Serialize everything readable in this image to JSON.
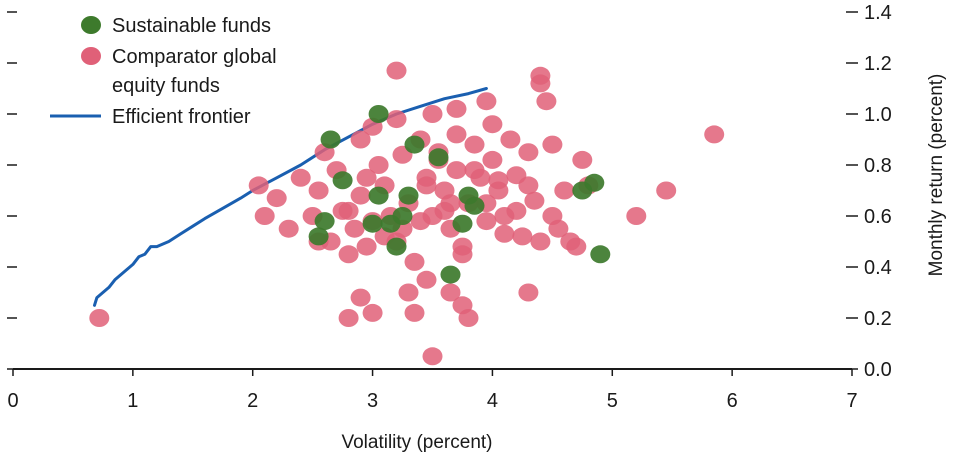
{
  "chart_data": {
    "type": "scatter",
    "title": "",
    "xlabel": "Volatility (percent)",
    "ylabel": "Monthly return (percent)",
    "xlim": [
      0,
      7
    ],
    "ylim": [
      0.0,
      1.4
    ],
    "x_ticks": [
      "0",
      "1",
      "2",
      "3",
      "4",
      "5",
      "6",
      "7"
    ],
    "y_ticks": [
      "0.0",
      "0.2",
      "0.4",
      "0.6",
      "0.8",
      "1.0",
      "1.2",
      "1.4"
    ],
    "y_axis_position": "right",
    "grid": false,
    "legend_position": "top-left",
    "legend": [
      {
        "label": "Sustainable funds",
        "marker": "dot",
        "color": "#3d7a2c"
      },
      {
        "label_lines": [
          "Comparator global",
          "equity funds"
        ],
        "marker": "dot",
        "color": "#e06078"
      },
      {
        "label": "Efficient frontier",
        "marker": "line",
        "color": "#1a5fb0"
      }
    ],
    "series": [
      {
        "name": "Comparator global equity funds",
        "kind": "scatter",
        "color": "#e06078",
        "points": [
          [
            0.72,
            0.2
          ],
          [
            2.05,
            0.72
          ],
          [
            2.1,
            0.6
          ],
          [
            2.2,
            0.67
          ],
          [
            2.3,
            0.55
          ],
          [
            2.4,
            0.75
          ],
          [
            2.5,
            0.6
          ],
          [
            2.55,
            0.7
          ],
          [
            2.6,
            0.85
          ],
          [
            2.65,
            0.5
          ],
          [
            2.7,
            0.78
          ],
          [
            2.75,
            0.62
          ],
          [
            2.8,
            0.45
          ],
          [
            2.85,
            0.55
          ],
          [
            2.9,
            0.9
          ],
          [
            2.9,
            0.68
          ],
          [
            2.95,
            0.48
          ],
          [
            3.0,
            0.95
          ],
          [
            3.0,
            0.58
          ],
          [
            3.05,
            0.8
          ],
          [
            3.1,
            0.72
          ],
          [
            3.15,
            0.6
          ],
          [
            3.2,
            0.98
          ],
          [
            3.2,
            0.5
          ],
          [
            3.25,
            0.84
          ],
          [
            3.3,
            0.65
          ],
          [
            3.35,
            0.42
          ],
          [
            3.4,
            0.9
          ],
          [
            3.45,
            0.75
          ],
          [
            3.5,
            0.6
          ],
          [
            3.5,
            1.0
          ],
          [
            3.55,
            0.85
          ],
          [
            3.6,
            0.7
          ],
          [
            3.65,
            0.55
          ],
          [
            3.7,
            0.92
          ],
          [
            3.7,
            0.78
          ],
          [
            3.75,
            0.45
          ],
          [
            3.8,
            0.65
          ],
          [
            3.85,
            0.88
          ],
          [
            3.9,
            0.75
          ],
          [
            3.95,
            0.58
          ],
          [
            4.0,
            0.96
          ],
          [
            4.0,
            0.82
          ],
          [
            4.05,
            0.7
          ],
          [
            4.1,
            0.6
          ],
          [
            4.15,
            0.9
          ],
          [
            4.2,
            0.76
          ],
          [
            4.25,
            0.52
          ],
          [
            4.3,
            0.85
          ],
          [
            4.35,
            0.66
          ],
          [
            4.4,
            1.12
          ],
          [
            4.4,
            1.15
          ],
          [
            4.45,
            1.05
          ],
          [
            4.5,
            0.88
          ],
          [
            4.55,
            0.55
          ],
          [
            4.6,
            0.7
          ],
          [
            4.7,
            0.48
          ],
          [
            4.75,
            0.82
          ],
          [
            4.8,
            0.72
          ],
          [
            3.0,
            0.22
          ],
          [
            2.8,
            0.2
          ],
          [
            2.9,
            0.28
          ],
          [
            3.3,
            0.3
          ],
          [
            3.35,
            0.22
          ],
          [
            3.65,
            0.3
          ],
          [
            3.75,
            0.25
          ],
          [
            3.8,
            0.2
          ],
          [
            4.3,
            0.3
          ],
          [
            3.5,
            0.05
          ],
          [
            3.2,
            1.17
          ],
          [
            4.3,
            0.72
          ],
          [
            3.95,
            0.65
          ],
          [
            3.6,
            0.62
          ],
          [
            3.4,
            0.58
          ],
          [
            3.25,
            0.55
          ],
          [
            3.1,
            0.52
          ],
          [
            2.95,
            0.75
          ],
          [
            2.8,
            0.62
          ],
          [
            3.45,
            0.72
          ],
          [
            3.55,
            0.82
          ],
          [
            3.85,
            0.78
          ],
          [
            4.05,
            0.74
          ],
          [
            4.2,
            0.62
          ],
          [
            4.4,
            0.5
          ],
          [
            4.5,
            0.6
          ],
          [
            4.65,
            0.5
          ],
          [
            5.2,
            0.6
          ],
          [
            5.45,
            0.7
          ],
          [
            5.85,
            0.92
          ],
          [
            3.45,
            0.35
          ],
          [
            2.55,
            0.5
          ],
          [
            3.7,
            1.02
          ],
          [
            3.95,
            1.05
          ],
          [
            3.65,
            0.65
          ],
          [
            3.75,
            0.48
          ],
          [
            4.1,
            0.53
          ]
        ]
      },
      {
        "name": "Sustainable funds",
        "kind": "scatter",
        "color": "#3d7a2c",
        "points": [
          [
            2.55,
            0.52
          ],
          [
            2.6,
            0.58
          ],
          [
            2.65,
            0.9
          ],
          [
            2.75,
            0.74
          ],
          [
            3.0,
            0.57
          ],
          [
            3.05,
            0.68
          ],
          [
            3.05,
            1.0
          ],
          [
            3.15,
            0.57
          ],
          [
            3.2,
            0.48
          ],
          [
            3.25,
            0.6
          ],
          [
            3.3,
            0.68
          ],
          [
            3.35,
            0.88
          ],
          [
            3.55,
            0.83
          ],
          [
            3.65,
            0.37
          ],
          [
            3.75,
            0.57
          ],
          [
            3.8,
            0.68
          ],
          [
            3.85,
            0.64
          ],
          [
            4.75,
            0.7
          ],
          [
            4.85,
            0.73
          ],
          [
            4.9,
            0.45
          ]
        ]
      },
      {
        "name": "Efficient frontier",
        "kind": "line",
        "color": "#1a5fb0",
        "points": [
          [
            0.68,
            0.25
          ],
          [
            0.7,
            0.28
          ],
          [
            0.75,
            0.3
          ],
          [
            0.8,
            0.32
          ],
          [
            0.85,
            0.35
          ],
          [
            0.9,
            0.37
          ],
          [
            1.0,
            0.41
          ],
          [
            1.05,
            0.44
          ],
          [
            1.1,
            0.45
          ],
          [
            1.15,
            0.48
          ],
          [
            1.2,
            0.48
          ],
          [
            1.3,
            0.5
          ],
          [
            1.4,
            0.53
          ],
          [
            1.5,
            0.56
          ],
          [
            1.6,
            0.59
          ],
          [
            1.75,
            0.63
          ],
          [
            1.9,
            0.67
          ],
          [
            2.0,
            0.7
          ],
          [
            2.2,
            0.75
          ],
          [
            2.4,
            0.8
          ],
          [
            2.6,
            0.86
          ],
          [
            2.8,
            0.91
          ],
          [
            3.0,
            0.96
          ],
          [
            3.2,
            1.0
          ],
          [
            3.4,
            1.03
          ],
          [
            3.6,
            1.06
          ],
          [
            3.8,
            1.08
          ],
          [
            3.95,
            1.1
          ]
        ]
      }
    ]
  }
}
